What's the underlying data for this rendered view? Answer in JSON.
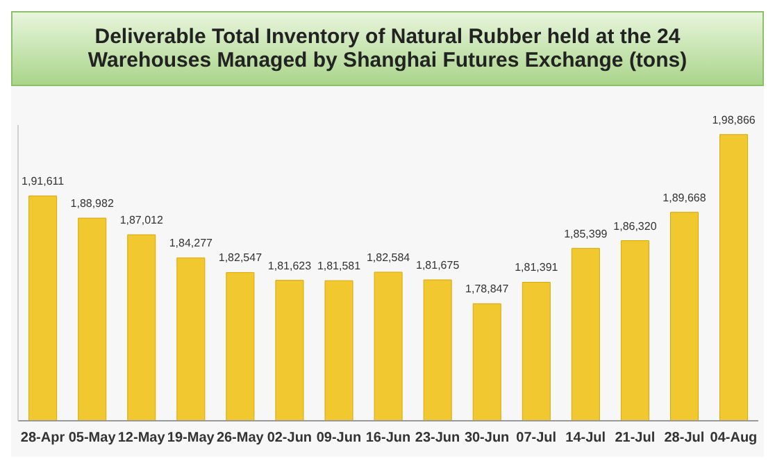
{
  "chart_data": {
    "type": "bar",
    "title": "Deliverable Total Inventory of Natural Rubber held at the 24 Warehouses Managed by Shanghai Futures Exchange (tons)",
    "categories": [
      "28-Apr",
      "05-May",
      "12-May",
      "19-May",
      "26-May",
      "02-Jun",
      "09-Jun",
      "16-Jun",
      "23-Jun",
      "30-Jun",
      "07-Jul",
      "14-Jul",
      "21-Jul",
      "28-Jul",
      "04-Aug"
    ],
    "values": [
      191611,
      188982,
      187012,
      184277,
      182547,
      181623,
      181581,
      182584,
      181675,
      178847,
      181391,
      185399,
      186320,
      189668,
      198866
    ],
    "value_labels": [
      "1,91,611",
      "1,88,982",
      "1,87,012",
      "1,84,277",
      "1,82,547",
      "1,81,623",
      "1,81,581",
      "1,82,584",
      "1,81,675",
      "1,78,847",
      "1,81,391",
      "1,85,399",
      "1,86,320",
      "1,89,668",
      "1,98,866"
    ],
    "color": "#f2c830",
    "ylim": [
      165000,
      200000
    ],
    "tick_labels": "x"
  }
}
